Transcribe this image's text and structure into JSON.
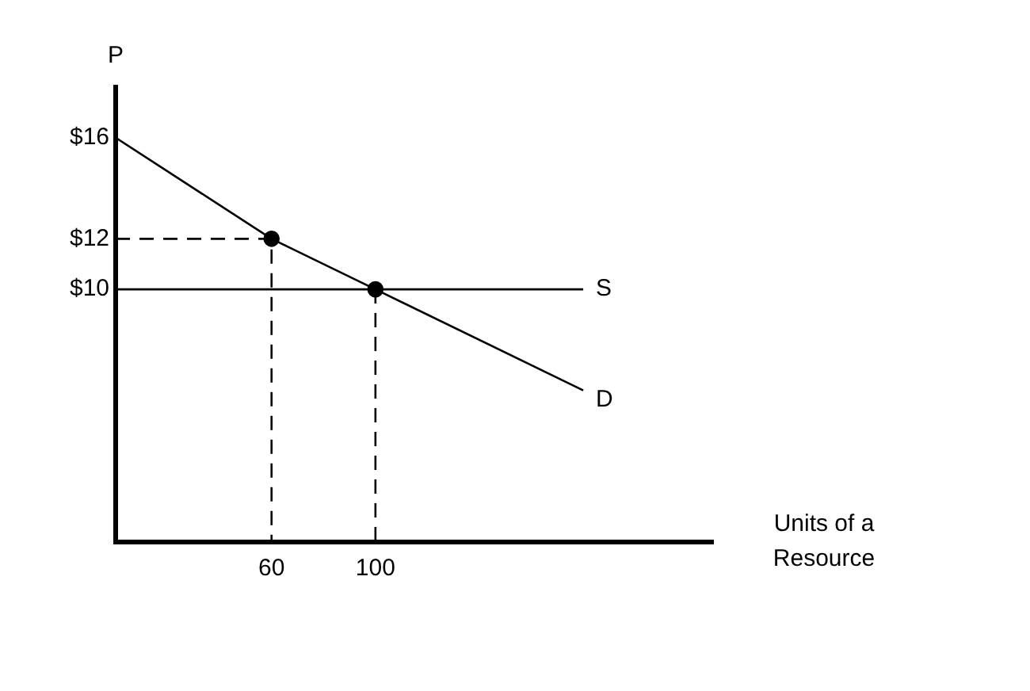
{
  "chart_data": {
    "type": "line",
    "xlabel": "Units of a Resource",
    "ylabel": "P",
    "xlim": [
      0,
      230
    ],
    "xticks": [
      60,
      100
    ],
    "ylim": [
      0,
      18
    ],
    "yticks": [
      {
        "value": 16,
        "label": "$16"
      },
      {
        "value": 12,
        "label": "$12"
      },
      {
        "value": 10,
        "label": "$10"
      }
    ],
    "series": [
      {
        "name": "D",
        "color": "#000000",
        "x": [
          0,
          60,
          100,
          180
        ],
        "values": [
          16,
          12,
          10,
          6
        ],
        "marker": "none",
        "line_style": "solid"
      },
      {
        "name": "S",
        "color": "#000000",
        "x": [
          0,
          180
        ],
        "values": [
          10,
          10
        ],
        "marker": "none",
        "line_style": "solid"
      },
      {
        "color": "#000000",
        "x": [
          0,
          60,
          60
        ],
        "values": [
          12,
          12,
          0
        ],
        "marker": "none",
        "line_style": "dashed"
      },
      {
        "color": "#000000",
        "x": [
          100,
          100
        ],
        "values": [
          10,
          0
        ],
        "marker": "none",
        "line_style": "dashed"
      },
      {
        "type": "scatter",
        "color": "#000000",
        "x": [
          60,
          100
        ],
        "values": [
          12,
          10
        ],
        "marker": "circle"
      }
    ]
  }
}
